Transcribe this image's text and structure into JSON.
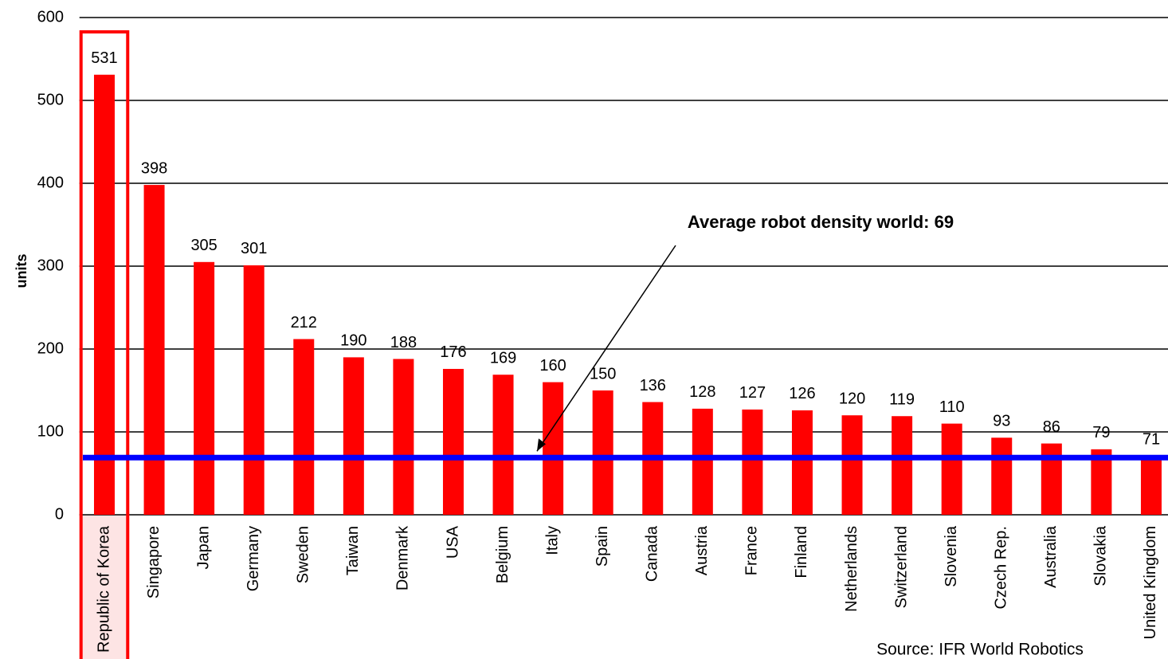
{
  "chart_data": {
    "type": "bar",
    "y_axis_label": "units",
    "categories": [
      "Republic of Korea",
      "Singapore",
      "Japan",
      "Germany",
      "Sweden",
      "Taiwan",
      "Denmark",
      "USA",
      "Belgium",
      "Italy",
      "Spain",
      "Canada",
      "Austria",
      "France",
      "Finland",
      "Netherlands",
      "Switzerland",
      "Slovenia",
      "Czech Rep.",
      "Australia",
      "Slovakia",
      "United Kingdom"
    ],
    "values": [
      531,
      398,
      305,
      301,
      212,
      190,
      188,
      176,
      169,
      160,
      150,
      136,
      128,
      127,
      126,
      120,
      119,
      110,
      93,
      86,
      79,
      71
    ],
    "color": "#ff0000",
    "ylim": [
      0,
      600
    ],
    "yticks": [
      0,
      100,
      200,
      300,
      400,
      500,
      600
    ],
    "grid": true,
    "average": 69,
    "average_color": "#0000ff",
    "annotation": "Average robot density world: 69",
    "source": "Source: IFR World Robotics",
    "highlight_index": 0,
    "highlight_color": "#ff0000"
  }
}
